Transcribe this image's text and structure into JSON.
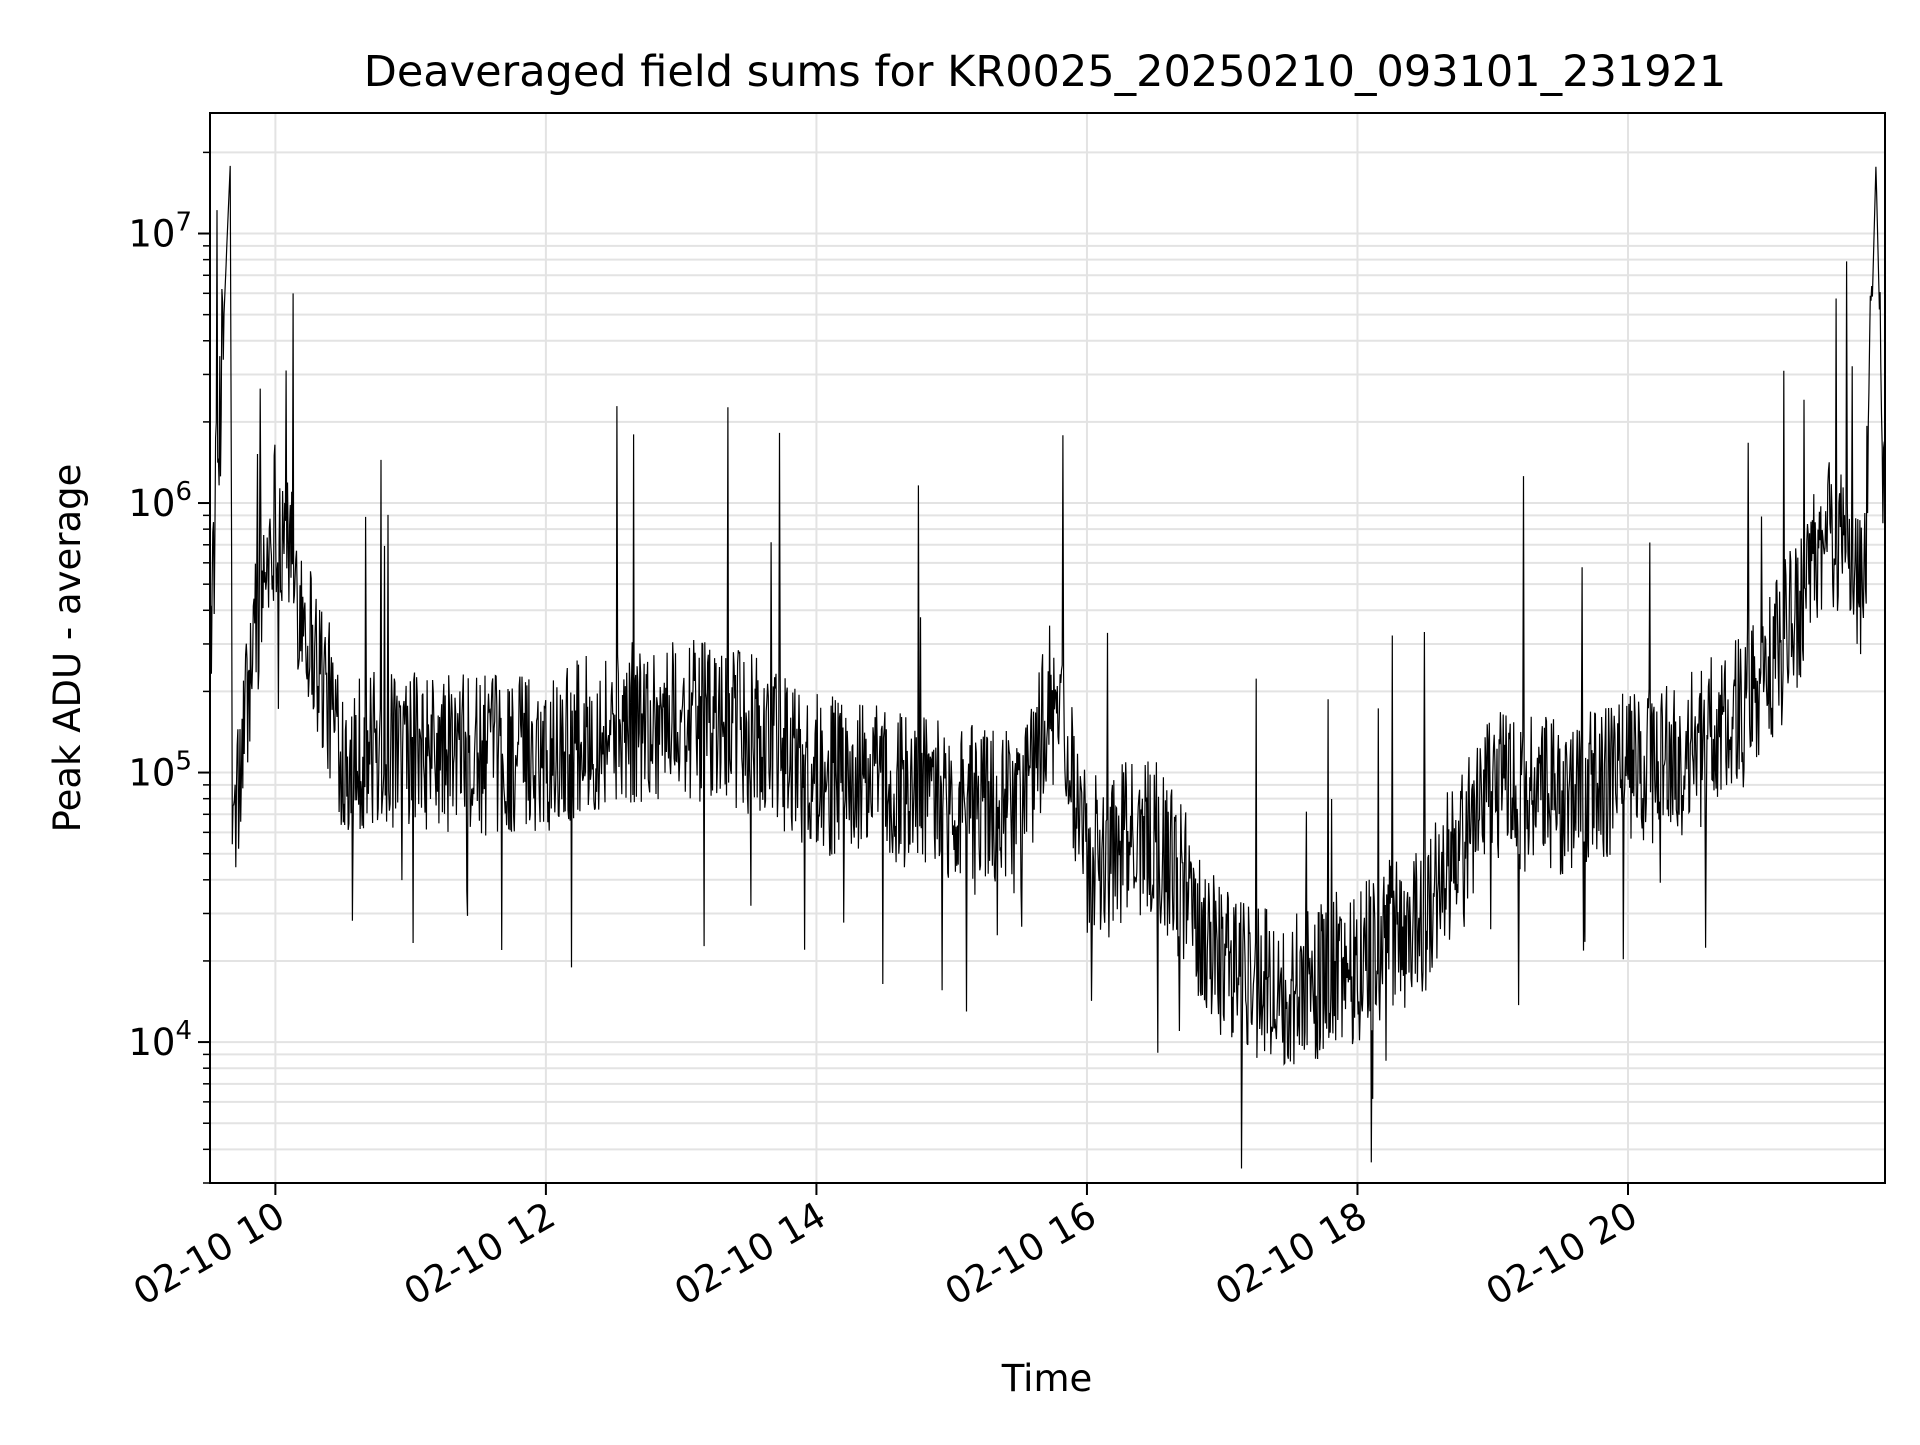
{
  "chart_data": {
    "type": "line",
    "title": "Deaveraged field sums for KR0025_20250210_093101_231921",
    "xlabel": "Time",
    "ylabel": "Peak ADU - average",
    "yscale": "log",
    "grid": true,
    "legend": "none",
    "xlim": [
      "2025-02-10 09:31",
      "2025-02-10 21:54"
    ],
    "ylim": [
      3000,
      28000000
    ],
    "x_ticks": [
      {
        "value": "2025-02-10 10:00",
        "label": "02-10 10"
      },
      {
        "value": "2025-02-10 12:00",
        "label": "02-10 12"
      },
      {
        "value": "2025-02-10 14:00",
        "label": "02-10 14"
      },
      {
        "value": "2025-02-10 16:00",
        "label": "02-10 16"
      },
      {
        "value": "2025-02-10 18:00",
        "label": "02-10 18"
      },
      {
        "value": "2025-02-10 20:00",
        "label": "02-10 20"
      }
    ],
    "y_ticks": [
      {
        "value": 10000,
        "base": "10",
        "exp": "4"
      },
      {
        "value": 100000,
        "base": "10",
        "exp": "5"
      },
      {
        "value": 1000000,
        "base": "10",
        "exp": "6"
      },
      {
        "value": 10000000,
        "base": "10",
        "exp": "7"
      }
    ],
    "series": [
      {
        "color": "#000000",
        "points": [
          {
            "x": "2025-02-10 09:31",
            "y": 300000
          },
          {
            "x": "2025-02-10 09:40",
            "y": 18000000
          },
          {
            "x": "2025-02-10 09:41",
            "y": 50000
          },
          {
            "x": "2025-02-10 09:50",
            "y": 300000
          },
          {
            "x": "2025-02-10 10:00",
            "y": 950000
          },
          {
            "x": "2025-02-10 10:30",
            "y": 120000
          },
          {
            "x": "2025-02-10 11:00",
            "y": 120000
          },
          {
            "x": "2025-02-10 11:30",
            "y": 115000
          },
          {
            "x": "2025-02-10 12:00",
            "y": 120000
          },
          {
            "x": "2025-02-10 12:30",
            "y": 150000
          },
          {
            "x": "2025-02-10 13:00",
            "y": 160000
          },
          {
            "x": "2025-02-10 13:30",
            "y": 140000
          },
          {
            "x": "2025-02-10 14:00",
            "y": 100000
          },
          {
            "x": "2025-02-10 14:30",
            "y": 90000
          },
          {
            "x": "2025-02-10 15:00",
            "y": 80000
          },
          {
            "x": "2025-02-10 15:30",
            "y": 70000
          },
          {
            "x": "2025-02-10 15:45",
            "y": 200000
          },
          {
            "x": "2025-02-10 16:00",
            "y": 50000
          },
          {
            "x": "2025-02-10 16:30",
            "y": 60000
          },
          {
            "x": "2025-02-10 17:00",
            "y": 20000
          },
          {
            "x": "2025-02-10 17:30",
            "y": 15000
          },
          {
            "x": "2025-02-10 18:00",
            "y": 20000
          },
          {
            "x": "2025-02-10 18:30",
            "y": 30000
          },
          {
            "x": "2025-02-10 19:00",
            "y": 90000
          },
          {
            "x": "2025-02-10 19:30",
            "y": 80000
          },
          {
            "x": "2025-02-10 20:00",
            "y": 100000
          },
          {
            "x": "2025-02-10 20:30",
            "y": 120000
          },
          {
            "x": "2025-02-10 21:00",
            "y": 200000
          },
          {
            "x": "2025-02-10 21:20",
            "y": 500000
          },
          {
            "x": "2025-02-10 21:30",
            "y": 800000
          },
          {
            "x": "2025-02-10 21:45",
            "y": 500000
          },
          {
            "x": "2025-02-10 21:50",
            "y": 18000000
          },
          {
            "x": "2025-02-10 21:54",
            "y": 700000
          }
        ]
      }
    ]
  }
}
